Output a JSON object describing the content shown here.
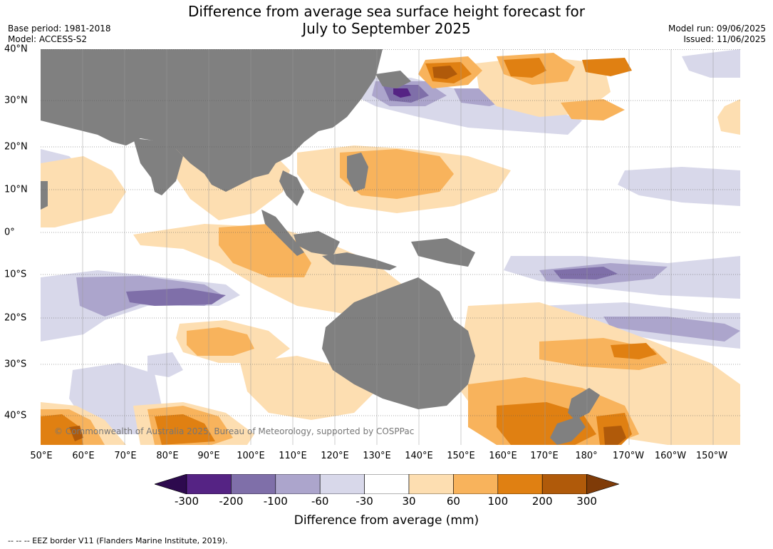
{
  "header": {
    "title_line1": "Difference from average sea surface height forecast for",
    "title_line2": "July to September 2025",
    "base_period": "Base period: 1981-2018",
    "model": "Model: ACCESS-S2",
    "model_run": "Model run: 09/06/2025",
    "issued": "Issued: 11/06/2025"
  },
  "map": {
    "lat_labels": [
      "40°N",
      "30°N",
      "20°N",
      "10°N",
      "0°",
      "10°S",
      "20°S",
      "30°S",
      "40°S"
    ],
    "lon_labels": [
      "50°E",
      "60°E",
      "70°E",
      "80°E",
      "90°E",
      "100°E",
      "110°E",
      "120°E",
      "130°E",
      "140°E",
      "150°E",
      "160°E",
      "170°E",
      "180°",
      "170°W",
      "160°W",
      "150°W"
    ],
    "land_color": "#808080",
    "copyright": "© Commonwealth of Australia 2025, Bureau of Meteorology, supported by COSPPac"
  },
  "colorbar": {
    "ticks": [
      "-300",
      "-200",
      "-100",
      "-60",
      "-30",
      "30",
      "60",
      "100",
      "200",
      "300"
    ],
    "colors": [
      "#2d0a4e",
      "#552384",
      "#7f6fa9",
      "#aca5cc",
      "#d8d8ea",
      "#ffffff",
      "#fddeb1",
      "#f8b35c",
      "#e08012",
      "#b05a0a",
      "#7f3b08"
    ],
    "label": "Difference from average (mm)"
  },
  "footnote": "-- -- -- EEZ border V11 (Flanders Marine Institute, 2019)."
}
